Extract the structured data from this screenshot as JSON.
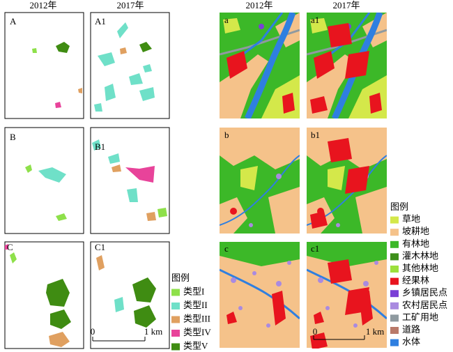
{
  "headers": [
    "2012年",
    "2017年",
    "2012年",
    "2017年"
  ],
  "panels": [
    "A",
    "A1",
    "B",
    "B1",
    "C",
    "C1",
    "a",
    "a1",
    "b",
    "b1",
    "c",
    "c1"
  ],
  "scale_bars": [
    {
      "start": "0",
      "end": "1 km"
    },
    {
      "start": "0",
      "end": "1 km"
    }
  ],
  "legend_types": {
    "title": "图例",
    "items": [
      {
        "label": "类型I",
        "color": "#8ee04a"
      },
      {
        "label": "类型II",
        "color": "#6fe0c8"
      },
      {
        "label": "类型III",
        "color": "#e0a060"
      },
      {
        "label": "类型IV",
        "color": "#e8439a"
      },
      {
        "label": "类型V",
        "color": "#3f8c12"
      }
    ]
  },
  "legend_landuse": {
    "title": "图例",
    "items": [
      {
        "label": "草地",
        "color": "#d4e84a"
      },
      {
        "label": "坡耕地",
        "color": "#f5c28a"
      },
      {
        "label": "有林地",
        "color": "#3cb828"
      },
      {
        "label": "灌木林地",
        "color": "#3d8f1a"
      },
      {
        "label": "其他林地",
        "color": "#9ce03c"
      },
      {
        "label": "经果林",
        "color": "#e8141e"
      },
      {
        "label": "乡镇居民点",
        "color": "#7a3fd6"
      },
      {
        "label": "农村居民点",
        "color": "#a98ae0"
      },
      {
        "label": "工矿用地",
        "color": "#8f9aa0"
      },
      {
        "label": "道路",
        "color": "#b97a6a"
      },
      {
        "label": "水体",
        "color": "#2f7fe0"
      }
    ]
  }
}
